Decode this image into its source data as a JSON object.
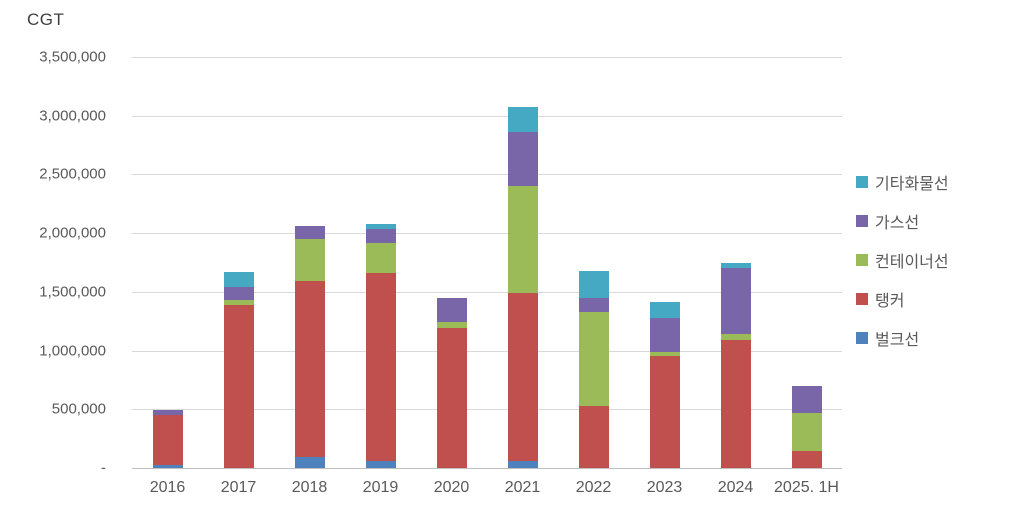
{
  "title": "CGT",
  "chart_data": {
    "type": "bar",
    "stacked": true,
    "title": "",
    "ylabel": "CGT",
    "xlabel": "",
    "ylim": [
      0,
      3500000
    ],
    "y_tick_step": 500000,
    "y_tick_labels": [
      "-",
      "500,000",
      "1,000,000",
      "1,500,000",
      "2,000,000",
      "2,500,000",
      "3,000,000",
      "3,500,000"
    ],
    "grid": true,
    "legend_position": "right",
    "legend_order_top_to_bottom": [
      "기타화물선",
      "가스선",
      "컨테이너선",
      "탱커",
      "벌크선"
    ],
    "categories": [
      "2016",
      "2017",
      "2018",
      "2019",
      "2020",
      "2021",
      "2022",
      "2023",
      "2024",
      "2025. 1H"
    ],
    "series": [
      {
        "name": "벌크선",
        "color": "#4f81bd",
        "values": [
          25000,
          0,
          90000,
          60000,
          0,
          60000,
          0,
          0,
          0,
          0
        ]
      },
      {
        "name": "탱커",
        "color": "#c0504d",
        "values": [
          425000,
          1390000,
          1500000,
          1600000,
          1190000,
          1430000,
          530000,
          950000,
          1090000,
          145000
        ]
      },
      {
        "name": "컨테이너선",
        "color": "#9bbb59",
        "values": [
          0,
          40000,
          360000,
          255000,
          55000,
          910000,
          795000,
          40000,
          50000,
          325000
        ]
      },
      {
        "name": "가스선",
        "color": "#7866a8",
        "values": [
          40000,
          110000,
          110000,
          120000,
          200000,
          460000,
          120000,
          290000,
          565000,
          230000
        ]
      },
      {
        "name": "기타화물선",
        "color": "#45a9c4",
        "values": [
          0,
          125000,
          0,
          45000,
          0,
          210000,
          230000,
          130000,
          45000,
          0
        ]
      }
    ],
    "totals": [
      490000,
      1665000,
      2060000,
      2080000,
      1445000,
      3070000,
      1675000,
      1410000,
      1750000,
      700000
    ]
  },
  "colors": {
    "gridline": "#d9d9d9",
    "axis_line": "#bfbfbf",
    "tick_text": "#595959",
    "title_text": "#3f3f3f",
    "background": "#ffffff"
  }
}
